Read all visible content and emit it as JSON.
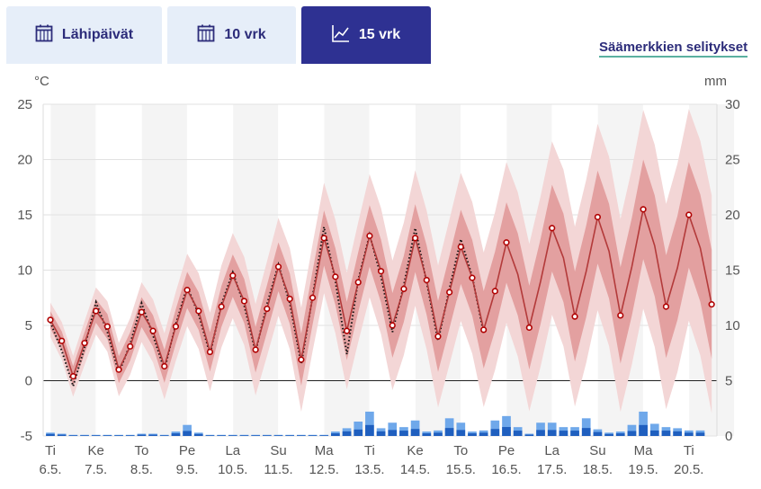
{
  "tabs": [
    {
      "label": "Lähipäivät",
      "icon": "calendar-icon",
      "active": false
    },
    {
      "label": "10 vrk",
      "icon": "calendar-icon",
      "active": false
    },
    {
      "label": "15 vrk",
      "icon": "line-chart-icon",
      "active": true
    }
  ],
  "legend_link": "Säämerkkien selitykset",
  "colors": {
    "tab_active": "#2e3192",
    "tab_inactive": "#e6eef9",
    "temperature_line": "#b33a3a",
    "band_outer": "#f3d6d6",
    "band_inner": "#e3a0a0",
    "precip_light": "#6fa8ea",
    "precip_dark": "#1f5fbf"
  },
  "chart_data": {
    "type": "line",
    "y_left": {
      "unit": "°C",
      "ticks": [
        25,
        20,
        15,
        10,
        5,
        0,
        -5
      ],
      "range": [
        -5,
        25
      ]
    },
    "y_right": {
      "unit": "mm",
      "ticks": [
        30,
        25,
        20,
        15,
        10,
        5,
        0
      ],
      "range": [
        0,
        30
      ]
    },
    "days": [
      {
        "weekday": "Ti",
        "date": "6.5."
      },
      {
        "weekday": "Ke",
        "date": "7.5."
      },
      {
        "weekday": "To",
        "date": "8.5."
      },
      {
        "weekday": "Pe",
        "date": "9.5."
      },
      {
        "weekday": "La",
        "date": "10.5."
      },
      {
        "weekday": "Su",
        "date": "11.5."
      },
      {
        "weekday": "Ma",
        "date": "12.5."
      },
      {
        "weekday": "Ti",
        "date": "13.5."
      },
      {
        "weekday": "Ke",
        "date": "14.5."
      },
      {
        "weekday": "To",
        "date": "15.5."
      },
      {
        "weekday": "Pe",
        "date": "16.5."
      },
      {
        "weekday": "La",
        "date": "17.5."
      },
      {
        "weekday": "Su",
        "date": "18.5."
      },
      {
        "weekday": "Ma",
        "date": "19.5."
      },
      {
        "weekday": "Ti",
        "date": "20.5."
      }
    ],
    "series": [
      {
        "values": [
          5.5,
          3.6,
          0.4,
          3.4,
          6.3,
          4.9,
          1.0,
          3.1,
          6.2,
          4.5,
          1.3,
          4.9,
          8.2,
          6.3,
          2.6,
          6.7,
          9.5,
          7.2,
          2.8,
          6.5,
          10.3,
          7.4,
          1.9,
          7.5,
          12.9,
          9.4,
          4.5,
          8.9,
          13.1,
          9.9,
          5.0,
          8.3,
          12.9,
          9.1,
          4.0,
          8.0,
          12.1,
          9.3,
          4.6,
          8.1,
          12.5,
          9.6,
          4.8,
          9.0,
          13.8,
          11.1,
          5.8,
          9.9,
          14.8,
          11.7,
          5.9,
          10.3,
          15.5,
          12.2,
          6.7,
          10.2,
          15.0,
          12.0,
          6.9
        ]
      },
      {
        "values": [
          5.3,
          2.7,
          -0.5,
          3.0,
          7.1,
          4.4,
          0.7,
          3.3,
          7.0,
          4.1,
          1.0,
          5.1,
          8.5,
          6.0,
          2.4,
          6.9,
          9.8,
          6.8,
          2.6,
          6.9,
          10.5,
          7.0,
          1.5,
          7.6,
          13.9,
          9.0,
          2.4,
          9.1,
          13.2,
          9.4,
          4.4,
          8.6,
          13.8,
          8.9,
          3.6,
          8.3,
          12.8,
          9.4,
          4.3
        ]
      }
    ],
    "precipitation": [
      0.3,
      0.2,
      0.1,
      0.1,
      0.1,
      0.1,
      0.1,
      0.1,
      0.2,
      0.2,
      0.1,
      0.4,
      1.0,
      0.3,
      0.1,
      0.1,
      0.1,
      0.1,
      0.1,
      0.1,
      0.1,
      0.1,
      0.1,
      0.1,
      0.1,
      0.4,
      0.7,
      1.3,
      2.2,
      0.7,
      1.2,
      0.8,
      1.4,
      0.4,
      0.5,
      1.6,
      1.2,
      0.4,
      0.5,
      1.4,
      1.8,
      0.8,
      0.2,
      1.2,
      1.2,
      0.8,
      0.8,
      1.6,
      0.6,
      0.3,
      0.4,
      1.0,
      2.2,
      1.1,
      0.8,
      0.7,
      0.5,
      0.5
    ],
    "grid": true
  }
}
